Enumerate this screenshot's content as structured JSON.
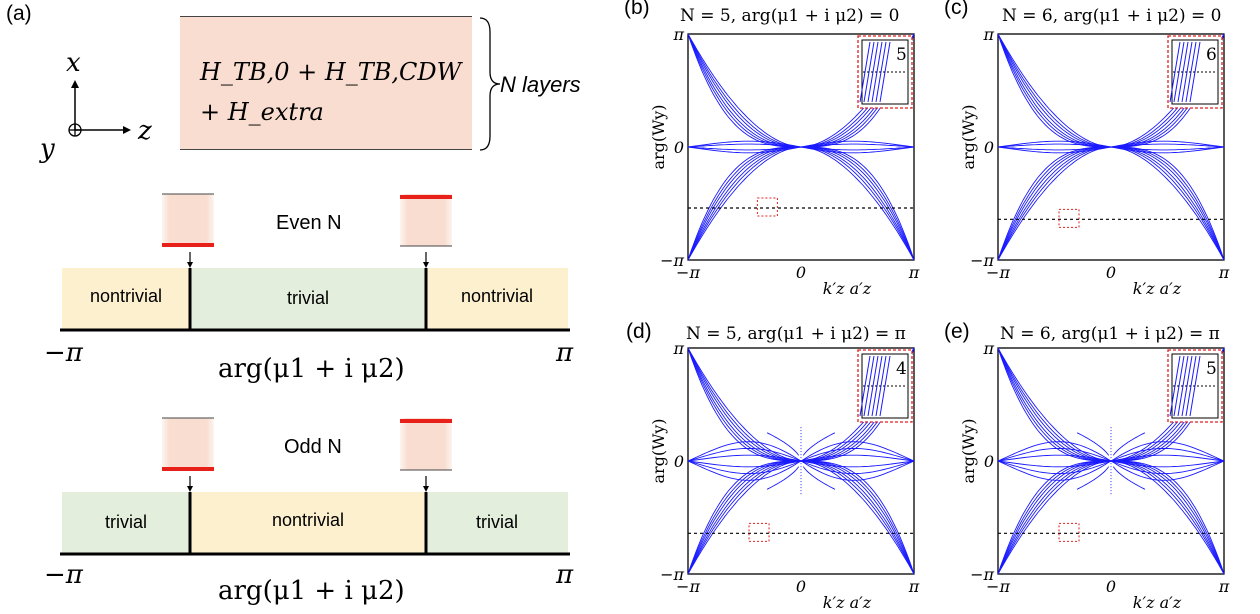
{
  "panel_a": {
    "label": "(a)",
    "axes": {
      "x": "x",
      "y": "y",
      "z": "z"
    },
    "hamiltonian": {
      "line1": "H_TB,0 + H_TB,CDW",
      "line2": "+ H_extra",
      "brace_label": "N layers"
    },
    "even": {
      "title": "Even N",
      "regions": [
        "nontrivial",
        "trivial",
        "nontrivial"
      ],
      "left_end": "−π",
      "right_end": "π",
      "axis_label": "arg(μ1 + i μ2)"
    },
    "odd": {
      "title": "Odd N",
      "regions": [
        "trivial",
        "nontrivial",
        "trivial"
      ],
      "left_end": "−π",
      "right_end": "π",
      "axis_label": "arg(μ1 + i μ2)"
    },
    "colors": {
      "nontrivial": "#fdf0cf",
      "trivial": "#e3efdc",
      "slab": "#f8ddd0",
      "surface": "#e8201a"
    }
  },
  "plots": [
    {
      "label": "(b)",
      "title": "N = 5, arg(μ1 + i μ2) = 0",
      "inset_number": "5",
      "ylabel": "arg(Wy)",
      "xlabel": "k′z a′z",
      "yticks": [
        "π",
        "0",
        "−π"
      ],
      "xticks": [
        "−π",
        "0",
        "π"
      ]
    },
    {
      "label": "(c)",
      "title": "N = 6, arg(μ1 + i μ2) = 0",
      "inset_number": "6",
      "ylabel": "arg(Wy)",
      "xlabel": "k′z a′z",
      "yticks": [
        "π",
        "0",
        "−π"
      ],
      "xticks": [
        "−π",
        "0",
        "π"
      ]
    },
    {
      "label": "(d)",
      "title": "N = 5, arg(μ1 + i μ2) = π",
      "inset_number": "4",
      "ylabel": "arg(Wy)",
      "xlabel": "k′z a′z",
      "yticks": [
        "π",
        "0",
        "−π"
      ],
      "xticks": [
        "−π",
        "0",
        "π"
      ]
    },
    {
      "label": "(e)",
      "title": "N = 6, arg(μ1 + i μ2) = π",
      "inset_number": "5",
      "ylabel": "arg(Wy)",
      "xlabel": "k′z a′z",
      "yticks": [
        "π",
        "0",
        "−π"
      ],
      "xticks": [
        "−π",
        "0",
        "π"
      ]
    }
  ],
  "colors": {
    "curves": "#1a1aff",
    "inset_box": "#e02020",
    "dashed": "#000000"
  }
}
